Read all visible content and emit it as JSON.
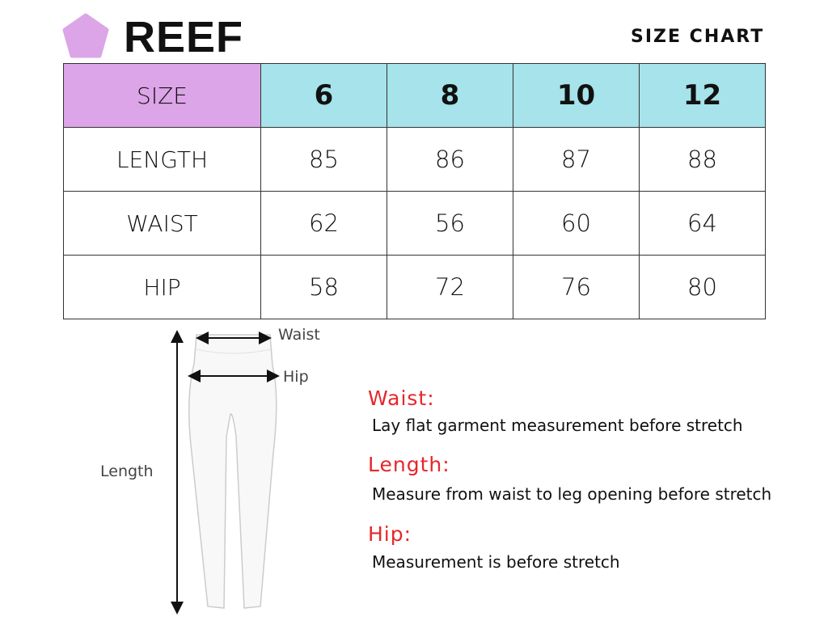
{
  "brand": {
    "name": "REEF",
    "logo_color": "#dca5e7"
  },
  "title": "SIZE CHART",
  "table": {
    "header": {
      "label": "SIZE",
      "sizes": [
        "6",
        "8",
        "10",
        "12"
      ]
    },
    "rows": [
      {
        "label": "LENGTH",
        "values": [
          "85",
          "86",
          "87",
          "88"
        ]
      },
      {
        "label": "WAIST",
        "values": [
          "62",
          "56",
          "60",
          "64"
        ]
      },
      {
        "label": "HIP",
        "values": [
          "58",
          "72",
          "76",
          "80"
        ]
      }
    ],
    "colors": {
      "size_header": "#dca5e7",
      "size_values": "#a6e3ea"
    }
  },
  "diagram": {
    "waist": "Waist",
    "hip": "Hip",
    "length": "Length"
  },
  "notes": [
    {
      "heading": "Waist:",
      "text": "Lay flat garment measurement before stretch"
    },
    {
      "heading": "Length:",
      "text": "Measure from waist to leg opening before stretch"
    },
    {
      "heading": "Hip:",
      "text": "Measurement is before stretch"
    }
  ],
  "accent": "#e8262a"
}
